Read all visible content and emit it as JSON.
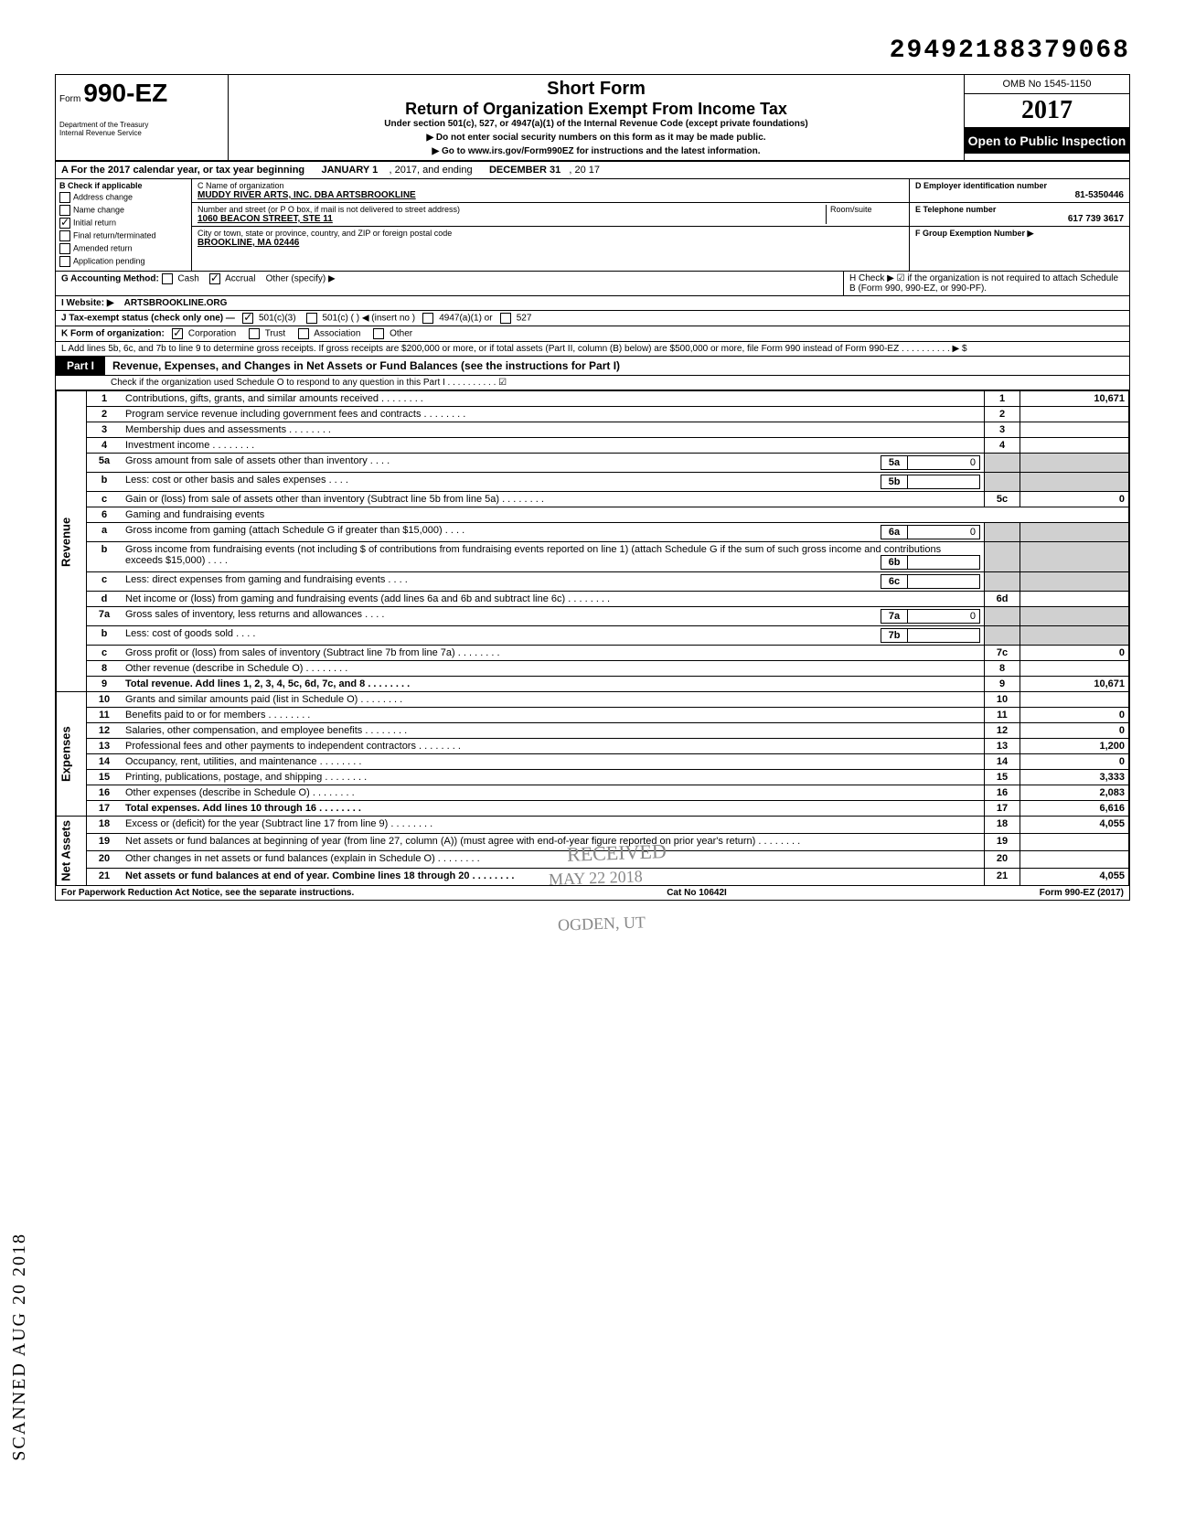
{
  "top_id": "29492188379068",
  "form": {
    "number": "990-EZ",
    "prefix": "Form",
    "short_form": "Short Form",
    "title": "Return of Organization Exempt From Income Tax",
    "subtitle": "Under section 501(c), 527, or 4947(a)(1) of the Internal Revenue Code (except private foundations)",
    "warn1": "▶ Do not enter social security numbers on this form as it may be made public.",
    "warn2": "▶ Go to www.irs.gov/Form990EZ for instructions and the latest information.",
    "dept": "Department of the Treasury\nInternal Revenue Service",
    "omb": "OMB No 1545-1150",
    "year": "2017",
    "open": "Open to Public Inspection"
  },
  "tax_year": {
    "label_a": "A For the 2017 calendar year, or tax year beginning",
    "begin": "JANUARY 1",
    "mid": ", 2017, and ending",
    "end": "DECEMBER 31",
    "end2": ", 20  17"
  },
  "section_b": {
    "label": "B Check if applicable",
    "items": [
      {
        "label": "Address change",
        "checked": false
      },
      {
        "label": "Name change",
        "checked": false
      },
      {
        "label": "Initial return",
        "checked": true
      },
      {
        "label": "Final return/terminated",
        "checked": false
      },
      {
        "label": "Amended return",
        "checked": false
      },
      {
        "label": "Application pending",
        "checked": false
      }
    ]
  },
  "org": {
    "name_label": "C Name of organization",
    "name": "MUDDY RIVER ARTS, INC. DBA ARTSBROOKLINE",
    "street_label": "Number and street (or P O box, if mail is not delivered to street address)",
    "room_label": "Room/suite",
    "street": "1060 BEACON STREET, STE 11",
    "city_label": "City or town, state or province, country, and ZIP or foreign postal code",
    "city": "BROOKLINE, MA 02446"
  },
  "right_box": {
    "ein_label": "D Employer identification number",
    "ein": "81-5350446",
    "phone_label": "E Telephone number",
    "phone": "617 739 3617",
    "group_label": "F Group Exemption Number ▶"
  },
  "lines_ghk": {
    "g": "G Accounting Method:",
    "g_cash": "Cash",
    "g_accrual": "Accrual",
    "g_other": "Other (specify) ▶",
    "i": "I  Website: ▶",
    "website": "ARTSBROOKLINE.ORG",
    "j": "J Tax-exempt status (check only one) —",
    "j_501c3": "501(c)(3)",
    "j_501c": "501(c) (       ) ◀ (insert no )",
    "j_4947": "4947(a)(1) or",
    "j_527": "527",
    "k": "K Form of organization:",
    "k_corp": "Corporation",
    "k_trust": "Trust",
    "k_assoc": "Association",
    "k_other": "Other",
    "h": "H Check ▶ ☑ if the organization is not required to attach Schedule B (Form 990, 990-EZ, or 990-PF).",
    "l": "L Add lines 5b, 6c, and 7b to line 9 to determine gross receipts. If gross receipts are $200,000 or more, or if total assets (Part II, column (B) below) are $500,000 or more, file Form 990 instead of Form 990-EZ  .  .  .  .  .  .  .  .  .  . ▶  $"
  },
  "part1": {
    "tab": "Part I",
    "title": "Revenue, Expenses, and Changes in Net Assets or Fund Balances (see the instructions for Part I)",
    "check_line": "Check if the organization used Schedule O to respond to any question in this Part I  .  .  .  .  .  .  .  .  .  .  ☑"
  },
  "side_labels": {
    "revenue": "Revenue",
    "expenses": "Expenses",
    "netassets": "Net Assets"
  },
  "rows": [
    {
      "n": "1",
      "desc": "Contributions, gifts, grants, and similar amounts received",
      "num": "1",
      "amt": "10,671"
    },
    {
      "n": "2",
      "desc": "Program service revenue including government fees and contracts",
      "num": "2",
      "amt": ""
    },
    {
      "n": "3",
      "desc": "Membership dues and assessments",
      "num": "3",
      "amt": ""
    },
    {
      "n": "4",
      "desc": "Investment income",
      "num": "4",
      "amt": ""
    },
    {
      "n": "5a",
      "desc": "Gross amount from sale of assets other than inventory",
      "sub_n": "5a",
      "sub_v": "0"
    },
    {
      "n": "b",
      "desc": "Less: cost or other basis and sales expenses",
      "sub_n": "5b",
      "sub_v": ""
    },
    {
      "n": "c",
      "desc": "Gain or (loss) from sale of assets other than inventory (Subtract line 5b from line 5a)",
      "num": "5c",
      "amt": "0"
    },
    {
      "n": "6",
      "desc": "Gaming and fundraising events"
    },
    {
      "n": "a",
      "desc": "Gross income from gaming (attach Schedule G if greater than $15,000)",
      "sub_n": "6a",
      "sub_v": "0"
    },
    {
      "n": "b",
      "desc": "Gross income from fundraising events (not including  $              of contributions from fundraising events reported on line 1) (attach Schedule G if the sum of such gross income and contributions exceeds $15,000)",
      "sub_n": "6b",
      "sub_v": ""
    },
    {
      "n": "c",
      "desc": "Less: direct expenses from gaming and fundraising events",
      "sub_n": "6c",
      "sub_v": ""
    },
    {
      "n": "d",
      "desc": "Net income or (loss) from gaming and fundraising events (add lines 6a and 6b and subtract line 6c)",
      "num": "6d",
      "amt": ""
    },
    {
      "n": "7a",
      "desc": "Gross sales of inventory, less returns and allowances",
      "sub_n": "7a",
      "sub_v": "0"
    },
    {
      "n": "b",
      "desc": "Less: cost of goods sold",
      "sub_n": "7b",
      "sub_v": ""
    },
    {
      "n": "c",
      "desc": "Gross profit or (loss) from sales of inventory (Subtract line 7b from line 7a)",
      "num": "7c",
      "amt": "0"
    },
    {
      "n": "8",
      "desc": "Other revenue (describe in Schedule O)",
      "num": "8",
      "amt": ""
    },
    {
      "n": "9",
      "desc": "Total revenue. Add lines 1, 2, 3, 4, 5c, 6d, 7c, and 8",
      "num": "9",
      "amt": "10,671",
      "bold": true
    },
    {
      "n": "10",
      "desc": "Grants and similar amounts paid (list in Schedule O)",
      "num": "10",
      "amt": ""
    },
    {
      "n": "11",
      "desc": "Benefits paid to or for members",
      "num": "11",
      "amt": "0"
    },
    {
      "n": "12",
      "desc": "Salaries, other compensation, and employee benefits",
      "num": "12",
      "amt": "0"
    },
    {
      "n": "13",
      "desc": "Professional fees and other payments to independent contractors",
      "num": "13",
      "amt": "1,200"
    },
    {
      "n": "14",
      "desc": "Occupancy, rent, utilities, and maintenance",
      "num": "14",
      "amt": "0"
    },
    {
      "n": "15",
      "desc": "Printing, publications, postage, and shipping",
      "num": "15",
      "amt": "3,333"
    },
    {
      "n": "16",
      "desc": "Other expenses (describe in Schedule O)",
      "num": "16",
      "amt": "2,083"
    },
    {
      "n": "17",
      "desc": "Total expenses. Add lines 10 through 16",
      "num": "17",
      "amt": "6,616",
      "bold": true
    },
    {
      "n": "18",
      "desc": "Excess or (deficit) for the year (Subtract line 17 from line 9)",
      "num": "18",
      "amt": "4,055"
    },
    {
      "n": "19",
      "desc": "Net assets or fund balances at beginning of year (from line 27, column (A)) (must agree with end-of-year figure reported on prior year's return)",
      "num": "19",
      "amt": ""
    },
    {
      "n": "20",
      "desc": "Other changes in net assets or fund balances (explain in Schedule O)",
      "num": "20",
      "amt": ""
    },
    {
      "n": "21",
      "desc": "Net assets or fund balances at end of year. Combine lines 18 through 20",
      "num": "21",
      "amt": "4,055",
      "bold": true
    }
  ],
  "footer": {
    "left": "For Paperwork Reduction Act Notice, see the separate instructions.",
    "mid": "Cat No 10642I",
    "right": "Form 990-EZ (2017)"
  },
  "stamps": {
    "received": "RECEIVED",
    "date": "MAY 22 2018",
    "ogden": "OGDEN, UT",
    "side": "SCANNED AUG 20 2018"
  }
}
